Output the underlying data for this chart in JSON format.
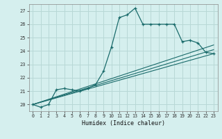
{
  "title": "",
  "xlabel": "Humidex (Indice chaleur)",
  "ylabel": "",
  "background_color": "#d5efee",
  "grid_color": "#b8d8d6",
  "line_color": "#1a6b6b",
  "xlim": [
    -0.5,
    23.5
  ],
  "ylim": [
    19.5,
    27.5
  ],
  "xticks": [
    0,
    1,
    2,
    3,
    4,
    5,
    6,
    7,
    8,
    9,
    10,
    11,
    12,
    13,
    14,
    15,
    16,
    17,
    18,
    19,
    20,
    21,
    22,
    23
  ],
  "yticks": [
    20,
    21,
    22,
    23,
    24,
    25,
    26,
    27
  ],
  "main_x": [
    0,
    1,
    2,
    3,
    4,
    5,
    6,
    7,
    8,
    9,
    10,
    11,
    12,
    13,
    14,
    15,
    16,
    17,
    18,
    19,
    20,
    21,
    22,
    23
  ],
  "main_y": [
    20.0,
    19.8,
    20.0,
    21.1,
    21.2,
    21.1,
    21.0,
    21.2,
    21.5,
    22.5,
    24.3,
    26.5,
    26.7,
    27.2,
    26.0,
    26.0,
    26.0,
    26.0,
    26.0,
    24.7,
    24.8,
    24.6,
    23.9,
    23.8
  ],
  "line1_x": [
    0,
    23
  ],
  "line1_y": [
    20.0,
    23.8
  ],
  "line2_x": [
    0,
    23
  ],
  "line2_y": [
    20.0,
    24.1
  ],
  "line3_x": [
    0,
    23
  ],
  "line3_y": [
    20.0,
    24.45
  ]
}
